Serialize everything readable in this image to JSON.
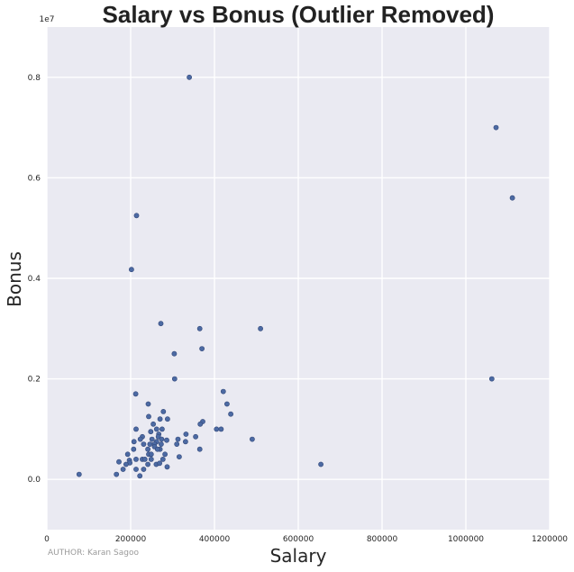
{
  "chart_data": {
    "type": "scatter",
    "title": "Salary vs Bonus (Outlier Removed)",
    "xlabel": "Salary",
    "ylabel": "Bonus",
    "xlim": [
      0,
      1200000
    ],
    "ylim": [
      -1000000,
      9000000
    ],
    "x_ticks": [
      {
        "value": 0,
        "label": "0"
      },
      {
        "value": 200000,
        "label": "200000"
      },
      {
        "value": 400000,
        "label": "400000"
      },
      {
        "value": 600000,
        "label": "600000"
      },
      {
        "value": 800000,
        "label": "800000"
      },
      {
        "value": 1000000,
        "label": "1000000"
      },
      {
        "value": 1200000,
        "label": "1200000"
      }
    ],
    "y_ticks": [
      {
        "value": 0,
        "label": "0.0"
      },
      {
        "value": 2000000,
        "label": "0.2"
      },
      {
        "value": 4000000,
        "label": "0.4"
      },
      {
        "value": 6000000,
        "label": "0.6"
      },
      {
        "value": 8000000,
        "label": "0.8"
      }
    ],
    "y_offset_label": "1e7",
    "grid": true,
    "point_color": "#4c6aa3",
    "background_color": "#eaeaf2",
    "grid_color": "#ffffff",
    "points": [
      [
        340000,
        8000000
      ],
      [
        1072000,
        7000000
      ],
      [
        1111000,
        5600000
      ],
      [
        214000,
        5250000
      ],
      [
        202000,
        4175000
      ],
      [
        510000,
        3000000
      ],
      [
        272000,
        3100000
      ],
      [
        365000,
        3000000
      ],
      [
        370000,
        2600000
      ],
      [
        304000,
        2500000
      ],
      [
        1062000,
        2000000
      ],
      [
        305000,
        2000000
      ],
      [
        421000,
        1750000
      ],
      [
        212000,
        1700000
      ],
      [
        430000,
        1500000
      ],
      [
        242000,
        1500000
      ],
      [
        439000,
        1300000
      ],
      [
        278000,
        1350000
      ],
      [
        243000,
        1250000
      ],
      [
        270000,
        1200000
      ],
      [
        288000,
        1200000
      ],
      [
        372000,
        1150000
      ],
      [
        254000,
        1100000
      ],
      [
        366000,
        1100000
      ],
      [
        405000,
        1000000
      ],
      [
        416000,
        1000000
      ],
      [
        213000,
        1000000
      ],
      [
        262000,
        1000000
      ],
      [
        275000,
        1000000
      ],
      [
        248000,
        950000
      ],
      [
        267000,
        900000
      ],
      [
        332000,
        900000
      ],
      [
        228000,
        850000
      ],
      [
        266000,
        850000
      ],
      [
        313000,
        800000
      ],
      [
        490000,
        800000
      ],
      [
        223000,
        800000
      ],
      [
        251000,
        800000
      ],
      [
        274000,
        800000
      ],
      [
        286000,
        780000
      ],
      [
        355000,
        850000
      ],
      [
        208000,
        750000
      ],
      [
        262000,
        750000
      ],
      [
        246000,
        700000
      ],
      [
        257000,
        700000
      ],
      [
        231000,
        700000
      ],
      [
        273000,
        700000
      ],
      [
        310000,
        700000
      ],
      [
        331000,
        750000
      ],
      [
        257000,
        650000
      ],
      [
        270000,
        600000
      ],
      [
        365000,
        600000
      ],
      [
        207000,
        600000
      ],
      [
        241000,
        600000
      ],
      [
        264000,
        600000
      ],
      [
        193000,
        500000
      ],
      [
        243000,
        500000
      ],
      [
        249000,
        500000
      ],
      [
        282000,
        500000
      ],
      [
        316000,
        450000
      ],
      [
        213000,
        400000
      ],
      [
        197000,
        380000
      ],
      [
        228000,
        400000
      ],
      [
        234000,
        400000
      ],
      [
        249000,
        400000
      ],
      [
        277000,
        400000
      ],
      [
        172000,
        350000
      ],
      [
        198000,
        330000
      ],
      [
        189000,
        300000
      ],
      [
        241000,
        300000
      ],
      [
        261000,
        300000
      ],
      [
        269000,
        320000
      ],
      [
        654000,
        300000
      ],
      [
        182000,
        200000
      ],
      [
        213000,
        200000
      ],
      [
        231000,
        200000
      ],
      [
        287000,
        250000
      ],
      [
        166000,
        100000
      ],
      [
        222000,
        70000
      ],
      [
        77000,
        100000
      ]
    ]
  },
  "credit": "AUTHOR: Karan Sagoo"
}
